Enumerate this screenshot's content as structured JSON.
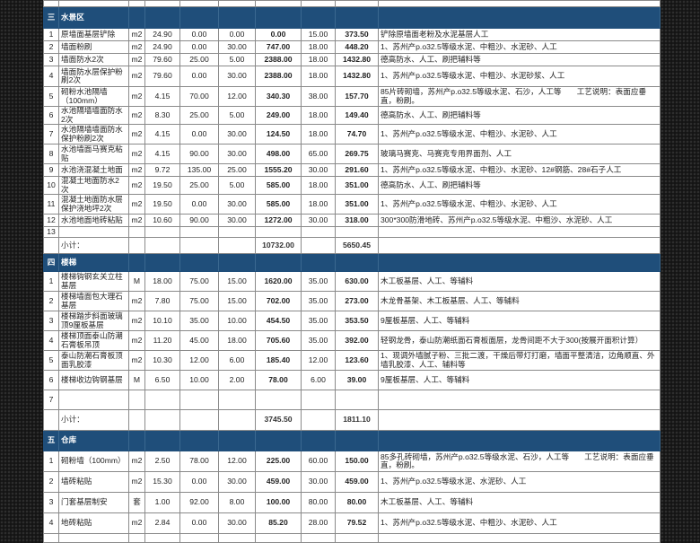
{
  "colors": {
    "section_header": "#1f4e7a",
    "background": "#141414"
  },
  "sections": [
    {
      "num": "三",
      "title": "水景区",
      "rows": [
        [
          "1",
          "原墙面基层铲除",
          "m2",
          "24.90",
          "0.00",
          "0.00",
          "0.00",
          "15.00",
          "373.50",
          "铲除原墙面老粉及水泥基层人工"
        ],
        [
          "2",
          "墙面粉刷",
          "m2",
          "24.90",
          "0.00",
          "30.00",
          "747.00",
          "18.00",
          "448.20",
          "1、苏州产p.o32.5等级水泥、中粗沙、水泥砂、人工"
        ],
        [
          "3",
          "墙面防水2次",
          "m2",
          "79.60",
          "25.00",
          "5.00",
          "2388.00",
          "18.00",
          "1432.80",
          "德高防水、人工、刷把辅料等"
        ],
        [
          "4",
          "墙面防水层保护粉刷2次",
          "m2",
          "79.60",
          "0.00",
          "30.00",
          "2388.00",
          "18.00",
          "1432.80",
          "1、苏州产p.o32.5等级水泥、中粗沙、水泥砂浆、人工"
        ],
        [
          "5",
          "砌粉水池隔墙（100mm）",
          "m2",
          "4.15",
          "70.00",
          "12.00",
          "340.30",
          "38.00",
          "157.70",
          "85片砖砌墙，苏州产p.o32.5等级水泥、石沙，人工等　　工艺说明：表面应垂直，粉刷。"
        ],
        [
          "6",
          "水池隔墙墙面防水2次",
          "m2",
          "8.30",
          "25.00",
          "5.00",
          "249.00",
          "18.00",
          "149.40",
          "德高防水、人工、刷把辅料等"
        ],
        [
          "7",
          "水池隔墙墙面防水保护粉刷2次",
          "m2",
          "4.15",
          "0.00",
          "30.00",
          "124.50",
          "18.00",
          "74.70",
          "1、苏州产p.o32.5等级水泥、中粗沙、水泥砂、人工"
        ],
        [
          "8",
          "水池墙面马赛克粘贴",
          "m2",
          "4.15",
          "90.00",
          "30.00",
          "498.00",
          "65.00",
          "269.75",
          "玻璃马赛克、马赛克专用界面剂、人工"
        ],
        [
          "9",
          "水池浇混凝土地面",
          "m2",
          "9.72",
          "135.00",
          "25.00",
          "1555.20",
          "30.00",
          "291.60",
          "1、苏州产p.o32.5等级水泥、中粗沙、水泥砂、12#钢筋、28#石子人工"
        ],
        [
          "10",
          "混凝土地面防水2次",
          "m2",
          "19.50",
          "25.00",
          "5.00",
          "585.00",
          "18.00",
          "351.00",
          "德高防水、人工、刷把辅料等"
        ],
        [
          "11",
          "混凝土地面防水层保护浇地坪2次",
          "m2",
          "19.50",
          "0.00",
          "30.00",
          "585.00",
          "18.00",
          "351.00",
          "1、苏州产p.o32.5等级水泥、中粗沙、水泥砂、人工"
        ],
        [
          "12",
          "水池地面地砖粘贴",
          "m2",
          "10.60",
          "90.00",
          "30.00",
          "1272.00",
          "30.00",
          "318.00",
          "300*300防滑地砖、苏州产p.o32.5等级水泥、中粗沙、水泥砂、人工"
        ],
        [
          "13",
          "",
          "",
          "",
          "",
          "",
          "",
          "",
          "",
          ""
        ]
      ],
      "subtotal": {
        "label": "小计：",
        "total": "10732.00",
        "labor": "5650.45"
      }
    },
    {
      "num": "四",
      "title": "楼梯",
      "rows": [
        [
          "1",
          "楼梯钩钢玄关立柱基层",
          "M",
          "18.00",
          "75.00",
          "15.00",
          "1620.00",
          "35.00",
          "630.00",
          "木工板基层、人工、等辅料"
        ],
        [
          "2",
          "楼梯墙面包大理石基层",
          "m2",
          "7.80",
          "75.00",
          "15.00",
          "702.00",
          "35.00",
          "273.00",
          "木龙骨基架、木工板基层、人工、等辅料"
        ],
        [
          "3",
          "楼梯踏步斜面玻璃顶9厘板基层",
          "m2",
          "10.10",
          "35.00",
          "10.00",
          "454.50",
          "35.00",
          "353.50",
          "9厘板基层、人工、等辅料"
        ],
        [
          "4",
          "楼梯顶面泰山防潮石膏板吊顶",
          "m2",
          "11.20",
          "45.00",
          "18.00",
          "705.60",
          "35.00",
          "392.00",
          "轻钢龙骨，泰山防潮纸面石膏板面层，龙骨间距不大于300(按展开面积计算）"
        ],
        [
          "5",
          "泰山防潮石膏板顶面乳胶漆",
          "m2",
          "10.30",
          "12.00",
          "6.00",
          "185.40",
          "12.00",
          "123.60",
          "1、现调外墙腻子粉、三批二渡，干燥后带灯打磨，墙面平整清洁，边角顺直、外墙乳胶漆、人工、辅料等"
        ],
        [
          "6",
          "楼梯收边钩钢基层",
          "M",
          "6.50",
          "10.00",
          "2.00",
          "78.00",
          "6.00",
          "39.00",
          "9厘板基层、人工、等辅料"
        ],
        [
          "7",
          "",
          "",
          "",
          "",
          "",
          "",
          "",
          "",
          ""
        ]
      ],
      "subtotal": {
        "label": "小计：",
        "total": "3745.50",
        "labor": "1811.10"
      }
    },
    {
      "num": "五",
      "title": "仓库",
      "rows": [
        [
          "1",
          "砌粉墙（100mm）",
          "m2",
          "2.50",
          "78.00",
          "12.00",
          "225.00",
          "60.00",
          "150.00",
          "85多孔砖砌墙，苏州产p.o32.5等级水泥、石沙，人工等　　工艺说明：表面应垂直，粉刷。"
        ],
        [
          "2",
          "墙砖粘贴",
          "m2",
          "15.30",
          "0.00",
          "30.00",
          "459.00",
          "30.00",
          "459.00",
          "1、苏州产p.o32.5等级水泥、水泥砂、人工"
        ],
        [
          "3",
          "门套基层制安",
          "套",
          "1.00",
          "92.00",
          "8.00",
          "100.00",
          "80.00",
          "80.00",
          "木工板基层、人工、等辅料"
        ],
        [
          "4",
          "地砖粘贴",
          "m2",
          "2.84",
          "0.00",
          "30.00",
          "85.20",
          "28.00",
          "79.52",
          "1、苏州产p.o32.5等级水泥、中粗沙、水泥砂、人工"
        ]
      ]
    }
  ]
}
